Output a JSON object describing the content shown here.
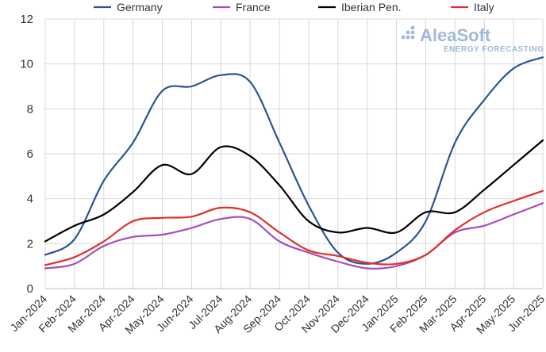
{
  "chart_data": {
    "type": "line",
    "title": "",
    "xlabel": "",
    "ylabel": "",
    "ylim": [
      0,
      12
    ],
    "yticks": [
      0,
      2,
      4,
      6,
      8,
      10,
      12
    ],
    "grid": "vertical lines at each category; horizontal lines at each y tick",
    "legend_position": "top",
    "categories": [
      "Jan-2024",
      "Feb-2024",
      "Mar-2024",
      "Apr-2024",
      "May-2024",
      "Jun-2024",
      "Jul-2024",
      "Aug-2024",
      "Sep-2024",
      "Oct-2024",
      "Nov-2024",
      "Dec-2024",
      "Jan-2025",
      "Feb-2025",
      "Mar-2025",
      "Apr-2025",
      "May-2025",
      "Jun-2025"
    ],
    "series": [
      {
        "name": "Germany",
        "color": "#2a5494",
        "values": [
          1.5,
          2.2,
          4.8,
          6.5,
          8.8,
          9.0,
          9.5,
          9.2,
          6.5,
          3.7,
          1.6,
          1.1,
          1.6,
          3.0,
          6.5,
          8.4,
          9.8,
          10.3
        ]
      },
      {
        "name": "France",
        "color": "#a64dbd",
        "values": [
          0.9,
          1.1,
          1.9,
          2.3,
          2.4,
          2.7,
          3.1,
          3.1,
          2.1,
          1.6,
          1.2,
          0.9,
          1.0,
          1.5,
          2.5,
          2.8,
          3.3,
          3.8
        ]
      },
      {
        "name": "Iberian Pen.",
        "color": "#000000",
        "values": [
          2.1,
          2.8,
          3.3,
          4.3,
          5.5,
          5.1,
          6.3,
          5.9,
          4.6,
          3.0,
          2.5,
          2.7,
          2.5,
          3.4,
          3.4,
          4.4,
          5.5,
          6.6
        ]
      },
      {
        "name": "Italy",
        "color": "#e0302b",
        "values": [
          1.05,
          1.4,
          2.1,
          3.0,
          3.15,
          3.2,
          3.6,
          3.4,
          2.5,
          1.7,
          1.45,
          1.15,
          1.1,
          1.5,
          2.6,
          3.4,
          3.9,
          4.35
        ]
      }
    ]
  },
  "watermark": {
    "brand": "AleaSoft",
    "tagline": "ENERGY FORECASTING"
  }
}
